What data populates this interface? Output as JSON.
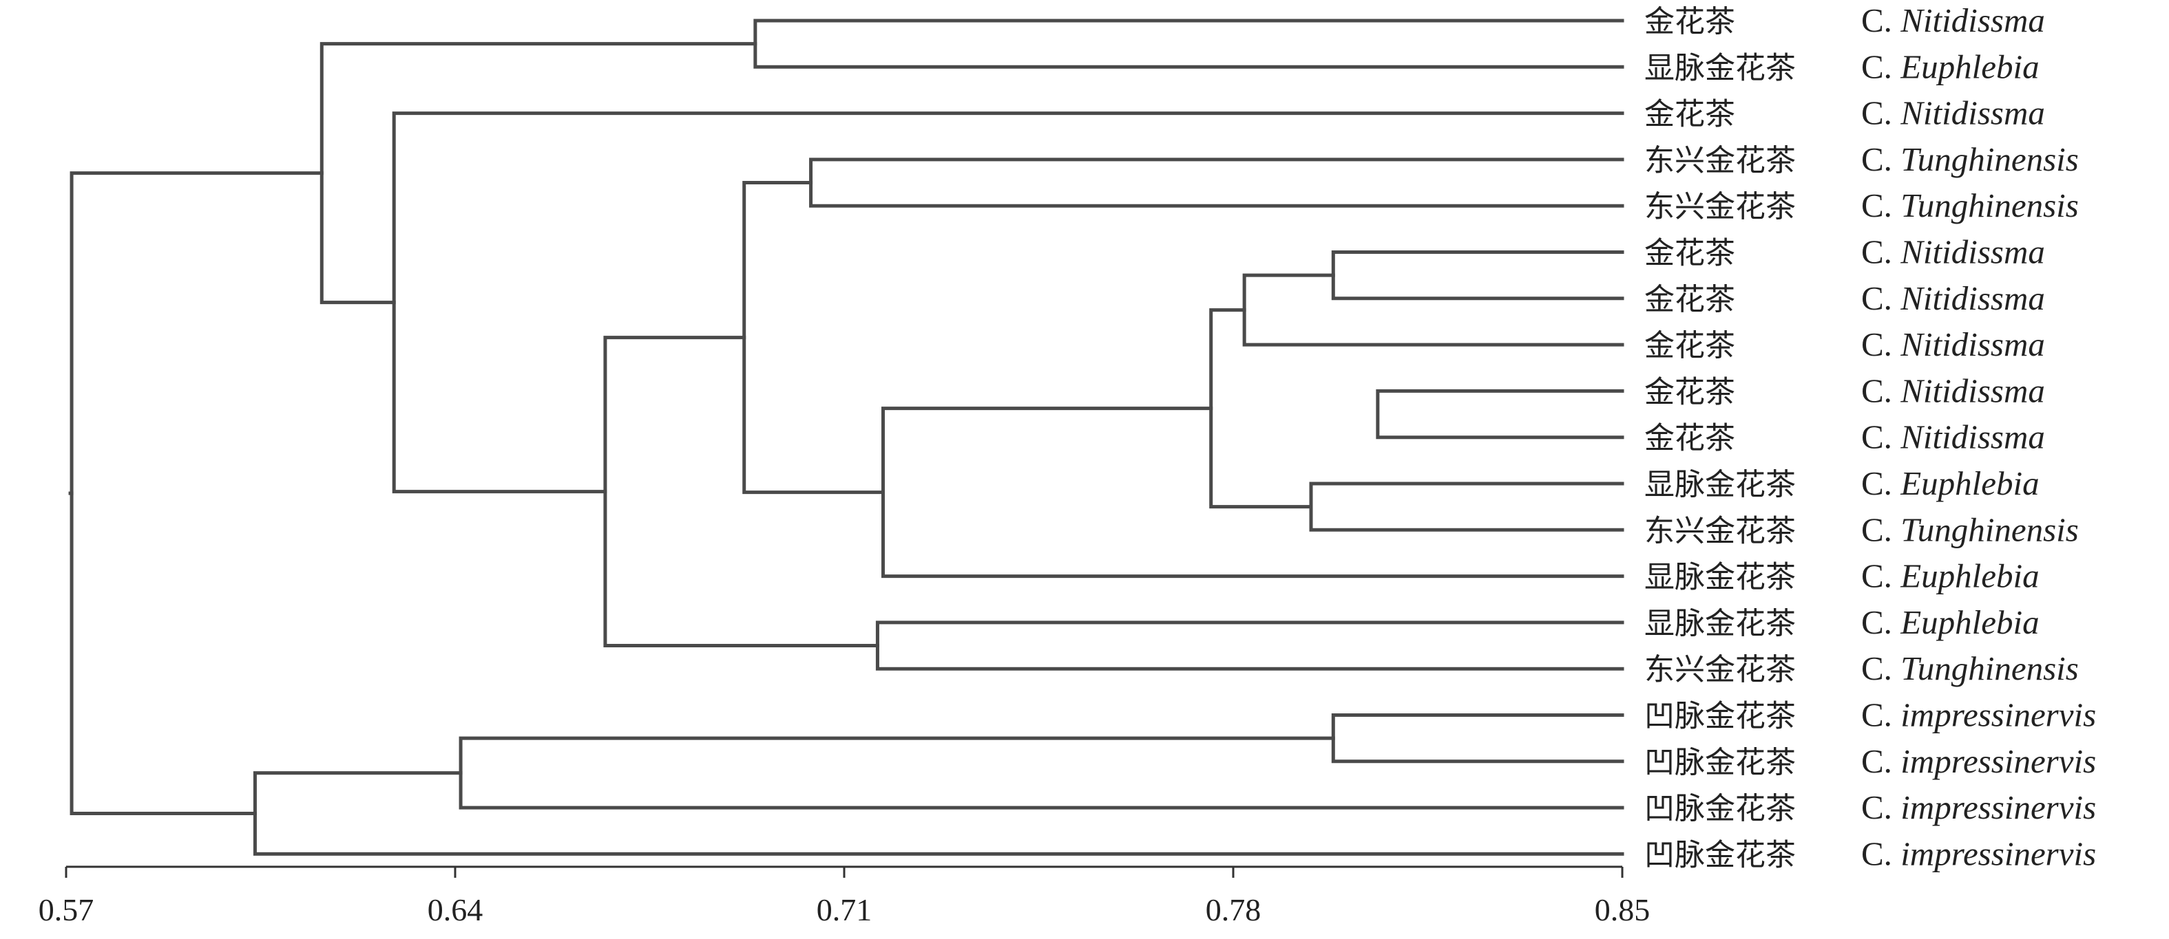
{
  "dendrogram": {
    "axis": {
      "min": 0.57,
      "max": 0.85,
      "ticks": [
        "0.57",
        "0.64",
        "0.71",
        "0.78",
        "0.85"
      ]
    },
    "leaves": [
      {
        "cn": "金花茶",
        "genus": "C.",
        "species": "Nitidissma"
      },
      {
        "cn": "显脉金花茶",
        "genus": "C.",
        "species": "Euphlebia"
      },
      {
        "cn": "金花茶",
        "genus": "C.",
        "species": "Nitidissma"
      },
      {
        "cn": "东兴金花茶",
        "genus": "C.",
        "species": "Tunghinensis"
      },
      {
        "cn": "东兴金花茶",
        "genus": "C.",
        "species": "Tunghinensis"
      },
      {
        "cn": "金花茶",
        "genus": "C.",
        "species": "Nitidissma"
      },
      {
        "cn": "金花茶",
        "genus": "C.",
        "species": "Nitidissma"
      },
      {
        "cn": "金花茶",
        "genus": "C.",
        "species": "Nitidissma"
      },
      {
        "cn": "金花茶",
        "genus": "C.",
        "species": "Nitidissma"
      },
      {
        "cn": "金花茶",
        "genus": "C.",
        "species": "Nitidissma"
      },
      {
        "cn": "显脉金花茶",
        "genus": "C.",
        "species": "Euphlebia"
      },
      {
        "cn": "东兴金花茶",
        "genus": "C.",
        "species": "Tunghinensis"
      },
      {
        "cn": "显脉金花茶",
        "genus": "C.",
        "species": "Euphlebia"
      },
      {
        "cn": "显脉金花茶",
        "genus": "C.",
        "species": "Euphlebia"
      },
      {
        "cn": "东兴金花茶",
        "genus": "C.",
        "species": "Tunghinensis"
      },
      {
        "cn": "凹脉金花茶",
        "genus": "C.",
        "species": "impressinervis"
      },
      {
        "cn": "凹脉金花茶",
        "genus": "C.",
        "species": "impressinervis"
      },
      {
        "cn": "凹脉金花茶",
        "genus": "C.",
        "species": "impressinervis"
      },
      {
        "cn": "凹脉金花茶",
        "genus": "C.",
        "species": "impressinervis"
      }
    ],
    "merges": [
      {
        "value": 0.694,
        "a": "L0",
        "b": "L1"
      },
      {
        "value": 0.704,
        "a": "L3",
        "b": "L4"
      },
      {
        "value": 0.798,
        "a": "L5",
        "b": "L6"
      },
      {
        "value": 0.806,
        "a": "L8",
        "b": "L9"
      },
      {
        "value": 0.782,
        "a": "M3",
        "b": "L7"
      },
      {
        "value": 0.794,
        "a": "L10",
        "b": "L11"
      },
      {
        "value": 0.776,
        "a": "M5",
        "b": "M6"
      },
      {
        "value": 0.717,
        "a": "M7",
        "b": "L12"
      },
      {
        "value": 0.692,
        "a": "M2",
        "b": "M8"
      },
      {
        "value": 0.716,
        "a": "L13",
        "b": "L14"
      },
      {
        "value": 0.667,
        "a": "M9",
        "b": "M10"
      },
      {
        "value": 0.629,
        "a": "L2",
        "b": "M11"
      },
      {
        "value": 0.616,
        "a": "M1",
        "b": "M12"
      },
      {
        "value": 0.798,
        "a": "L15",
        "b": "L16"
      },
      {
        "value": 0.641,
        "a": "M14",
        "b": "L17"
      },
      {
        "value": 0.604,
        "a": "M15",
        "b": "L18"
      },
      {
        "value": 0.571,
        "a": "M13",
        "b": "M16"
      }
    ]
  }
}
